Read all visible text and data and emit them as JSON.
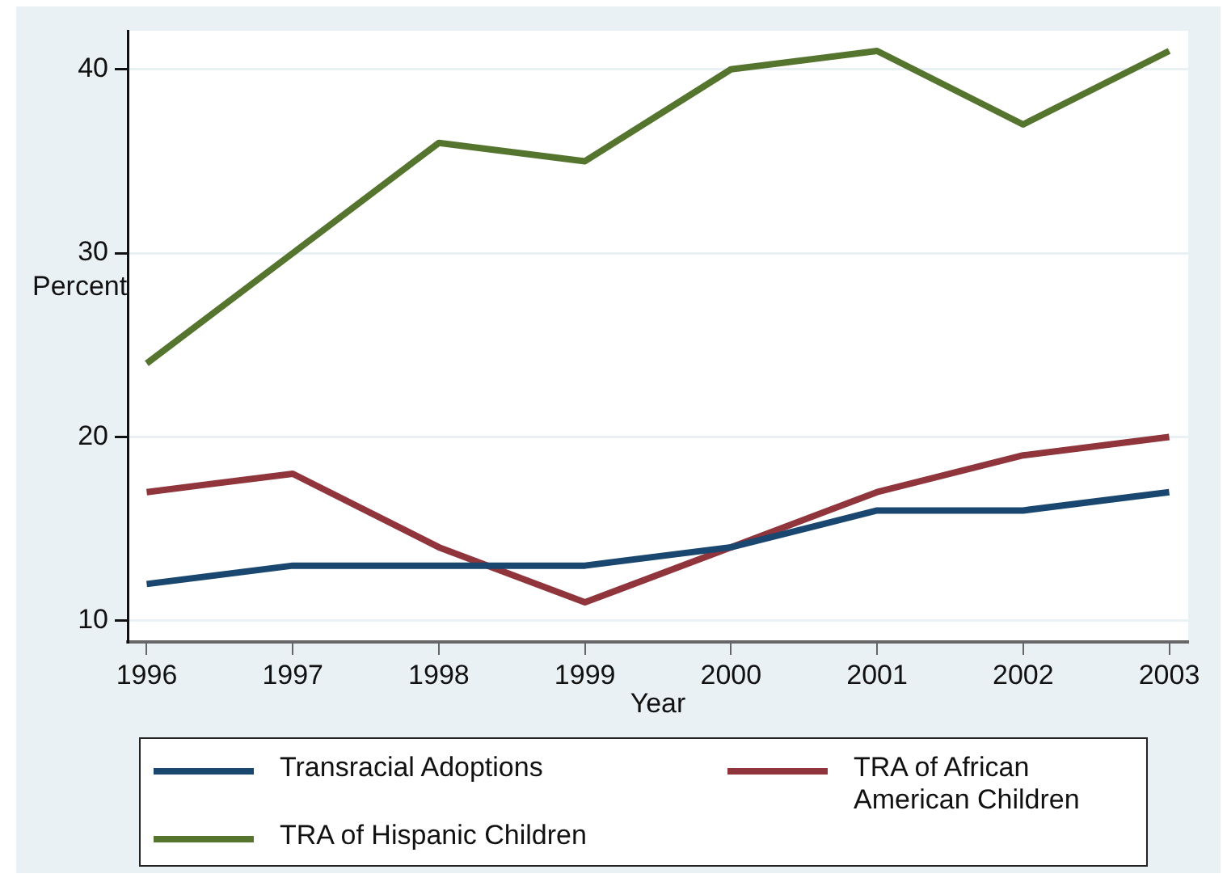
{
  "chart_data": {
    "type": "line",
    "xlabel": "Year",
    "ylabel": "Percent",
    "x": [
      1996,
      1997,
      1998,
      1999,
      2000,
      2001,
      2002,
      2003
    ],
    "xlim": [
      1995.87,
      2003.13
    ],
    "xticks": [
      1996,
      1997,
      1998,
      1999,
      2000,
      2001,
      2002,
      2003
    ],
    "ylim": [
      8.85,
      42.1
    ],
    "yticks": [
      10,
      20,
      30,
      40
    ],
    "grid": "y",
    "legend": "bottom",
    "marker": "none",
    "line_style": "solid",
    "series": [
      {
        "name": "Transracial Adoptions",
        "color": "#1a476f",
        "values": [
          12,
          13,
          13,
          13,
          14,
          16,
          16,
          17
        ]
      },
      {
        "name": "TRA of African American Children",
        "color": "#90353b",
        "values": [
          17,
          18,
          14,
          11,
          14,
          17,
          19,
          20
        ]
      },
      {
        "name": "TRA of Hispanic Children",
        "color": "#55752f",
        "values": [
          24,
          30,
          36,
          35,
          40,
          41,
          37,
          41
        ]
      }
    ]
  }
}
